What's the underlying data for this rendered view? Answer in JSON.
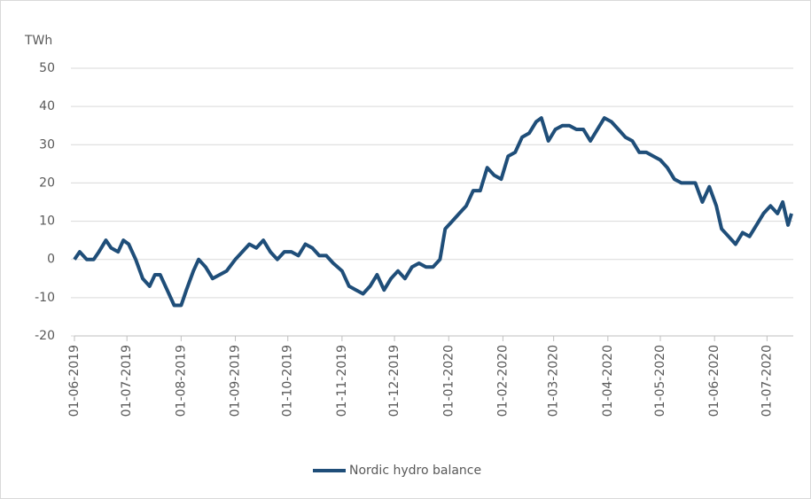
{
  "chart_data": {
    "type": "line",
    "y_label": "TWh",
    "x": [
      "01-06-2019",
      "04-06-2019",
      "08-06-2019",
      "12-06-2019",
      "15-06-2019",
      "19-06-2019",
      "22-06-2019",
      "26-06-2019",
      "29-06-2019",
      "02-07-2019",
      "06-07-2019",
      "10-07-2019",
      "14-07-2019",
      "17-07-2019",
      "20-07-2019",
      "24-07-2019",
      "28-07-2019",
      "01-08-2019",
      "04-08-2019",
      "08-08-2019",
      "11-08-2019",
      "15-08-2019",
      "19-08-2019",
      "23-08-2019",
      "27-08-2019",
      "01-09-2019",
      "05-09-2019",
      "09-09-2019",
      "13-09-2019",
      "17-09-2019",
      "21-09-2019",
      "25-09-2019",
      "29-09-2019",
      "03-10-2019",
      "07-10-2019",
      "11-10-2019",
      "15-10-2019",
      "19-10-2019",
      "23-10-2019",
      "27-10-2019",
      "01-11-2019",
      "05-11-2019",
      "09-11-2019",
      "13-11-2019",
      "17-11-2019",
      "21-11-2019",
      "25-11-2019",
      "29-11-2019",
      "03-12-2019",
      "07-12-2019",
      "11-12-2019",
      "15-12-2019",
      "19-12-2019",
      "23-12-2019",
      "27-12-2019",
      "30-12-2019",
      "03-01-2020",
      "07-01-2020",
      "11-01-2020",
      "15-01-2020",
      "19-01-2020",
      "23-01-2020",
      "27-01-2020",
      "31-01-2020",
      "04-02-2020",
      "08-02-2020",
      "12-02-2020",
      "16-02-2020",
      "20-02-2020",
      "23-02-2020",
      "27-02-2020",
      "02-03-2020",
      "06-03-2020",
      "10-03-2020",
      "14-03-2020",
      "18-03-2020",
      "22-03-2020",
      "26-03-2020",
      "30-03-2020",
      "03-04-2020",
      "07-04-2020",
      "11-04-2020",
      "15-04-2020",
      "19-04-2020",
      "23-04-2020",
      "27-04-2020",
      "01-05-2020",
      "05-05-2020",
      "09-05-2020",
      "13-05-2020",
      "17-05-2020",
      "21-05-2020",
      "25-05-2020",
      "29-05-2020",
      "02-06-2020",
      "05-06-2020",
      "09-06-2020",
      "13-06-2020",
      "17-06-2020",
      "21-06-2020",
      "25-06-2020",
      "29-06-2020",
      "03-07-2020",
      "07-07-2020",
      "10-07-2020",
      "13-07-2020",
      "15-07-2020"
    ],
    "series": [
      {
        "name": "Nordic hydro balance",
        "color": "#1f4e79",
        "values": [
          0,
          2,
          0,
          0,
          2,
          5,
          3,
          2,
          5,
          4,
          0,
          -5,
          -7,
          -4,
          -4,
          -8,
          -12,
          -12,
          -8,
          -3,
          0,
          -2,
          -5,
          -4,
          -3,
          0,
          2,
          4,
          3,
          5,
          2,
          0,
          2,
          2,
          1,
          4,
          3,
          1,
          1,
          -1,
          -3,
          -7,
          -8,
          -9,
          -7,
          -4,
          -8,
          -5,
          -3,
          -5,
          -2,
          -1,
          -2,
          -2,
          0,
          8,
          10,
          12,
          14,
          18,
          18,
          24,
          22,
          21,
          27,
          28,
          32,
          33,
          36,
          37,
          31,
          34,
          35,
          35,
          34,
          34,
          31,
          34,
          37,
          36,
          34,
          32,
          31,
          28,
          28,
          27,
          26,
          24,
          21,
          20,
          20,
          20,
          15,
          19,
          14,
          8,
          6,
          4,
          7,
          6,
          9,
          12,
          14,
          12,
          15,
          9,
          12
        ]
      }
    ],
    "xlim": [
      "01-06-2019",
      "15-07-2020"
    ],
    "xticks": [
      "01-06-2019",
      "01-07-2019",
      "01-08-2019",
      "01-09-2019",
      "01-10-2019",
      "01-11-2019",
      "01-12-2019",
      "01-01-2020",
      "01-02-2020",
      "01-03-2020",
      "01-04-2020",
      "01-05-2020",
      "01-06-2020",
      "01-07-2020"
    ],
    "ylim": [
      -20,
      50
    ],
    "yticks": [
      -20,
      -10,
      0,
      10,
      20,
      30,
      40,
      50
    ],
    "grid": true,
    "legend": "bottom"
  }
}
